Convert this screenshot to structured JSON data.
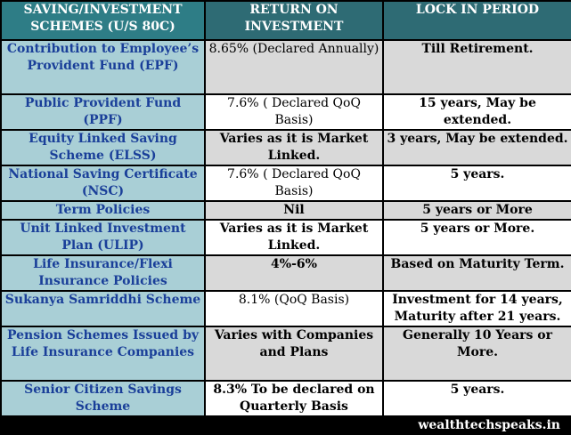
{
  "headers": {
    "scheme": "SAVING/INVESTMENT SCHEMES (U/S 80C)",
    "return": "RETURN ON INVESTMENT",
    "lock": "LOCK IN PERIOD"
  },
  "rows": [
    {
      "scheme": "Contribution to Employee’s Provident Fund (EPF)",
      "return": "8.65% (Declared Annually)",
      "lock": "Till Retirement."
    },
    {
      "scheme": "Public Provident Fund (PPF)",
      "return": "7.6% ( Declared QoQ Basis)",
      "lock": "15 years, May be extended."
    },
    {
      "scheme": "Equity Linked Saving Scheme (ELSS)",
      "return": "Varies as it is Market Linked.",
      "lock": "3 years, May be extended."
    },
    {
      "scheme": "National Saving Certificate (NSC)",
      "return": "7.6% ( Declared QoQ Basis)",
      "lock": "5 years."
    },
    {
      "scheme": "Term Policies",
      "return": "Nil",
      "lock": "5 years or More"
    },
    {
      "scheme": "Unit Linked Investment Plan (ULIP)",
      "return": "Varies as it is Market Linked.",
      "lock": "5 years or More."
    },
    {
      "scheme": "Life Insurance/Flexi Insurance Policies",
      "return": "4%-6%",
      "lock": "Based on Maturity Term."
    },
    {
      "scheme": "Sukanya Samriddhi Scheme",
      "return": "8.1% (QoQ Basis)",
      "lock": "Investment for 14 years, Maturity after 21 years."
    },
    {
      "scheme": "Pension Schemes Issued by Life Insurance Companies",
      "return": "Varies with Companies and Plans",
      "lock": "Generally 10 Years or More."
    },
    {
      "scheme": "Senior Citizen Savings Scheme",
      "return": "8.3% To be declared on Quarterly Basis",
      "lock": "5 years."
    }
  ],
  "credit": "wealthtechspeaks.in",
  "colors": {
    "header_bg": "#2e6b74",
    "scheme_bg": "#a9cfd6",
    "scheme_text": "#1a3f99",
    "shaded_row": "#d9d9d9"
  }
}
